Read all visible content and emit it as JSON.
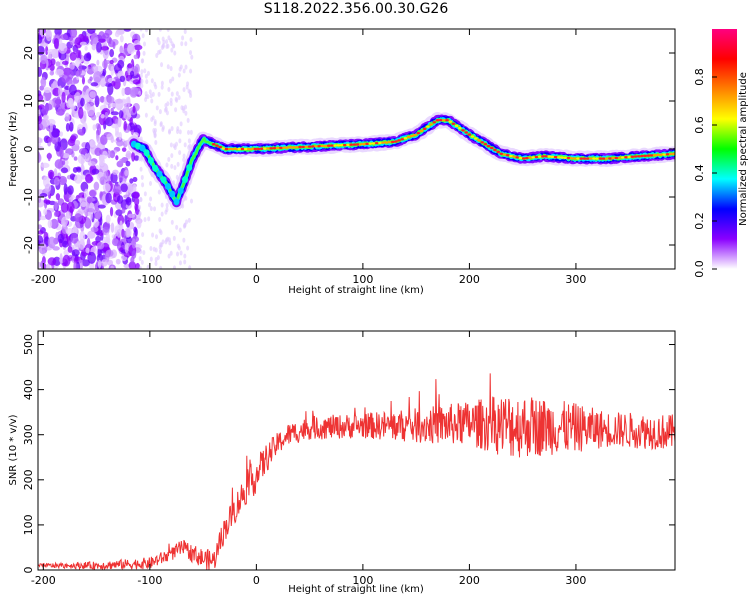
{
  "figure_title": "S118.2022.356.00.30.G26",
  "chart_data": [
    {
      "type": "heatmap",
      "xlabel": "Height of straight line (km)",
      "ylabel": "Frequency (Hz)",
      "xlim": [
        -205,
        393
      ],
      "ylim": [
        -25,
        25
      ],
      "xticks": [
        -200,
        -100,
        0,
        100,
        200,
        300
      ],
      "yticks": [
        -20,
        -10,
        0,
        10,
        20
      ],
      "colorbar": {
        "label": "Normalized spectral amplitude",
        "range": [
          0,
          1
        ],
        "ticks": [
          "0.0",
          "0.2",
          "0.4",
          "0.6",
          "0.8"
        ],
        "colors": [
          "#ffffff",
          "#8a00ff",
          "#0000ff",
          "#00ffff",
          "#00ff00",
          "#ffff00",
          "#ff8000",
          "#ff0000",
          "#ff0080"
        ]
      },
      "ridge": {
        "x": [
          -115,
          -105,
          -95,
          -85,
          -75,
          -68,
          -60,
          -50,
          -40,
          -30,
          0,
          50,
          100,
          130,
          150,
          170,
          180,
          200,
          215,
          230,
          250,
          270,
          300,
          330,
          360,
          393
        ],
        "y": [
          1,
          0,
          -4,
          -7,
          -11,
          -7,
          -2,
          2,
          1,
          0,
          0,
          0.5,
          1,
          1.5,
          3,
          6,
          6,
          3,
          1,
          -1,
          -2,
          -1.5,
          -2,
          -2,
          -1.5,
          -1
        ]
      }
    },
    {
      "type": "line",
      "xlabel": "Height of straight line (km)",
      "ylabel": "SNR (10 * v/v)",
      "xlim": [
        -205,
        393
      ],
      "ylim": [
        0,
        530
      ],
      "xticks": [
        -200,
        -100,
        0,
        100,
        200,
        300
      ],
      "yticks": [
        0,
        100,
        200,
        300,
        400,
        500
      ],
      "color": "#ee3333",
      "envelope": {
        "x": [
          -205,
          -150,
          -100,
          -80,
          -70,
          -50,
          -40,
          -30,
          -10,
          0,
          10,
          20,
          30,
          50,
          100,
          150,
          200,
          250,
          300,
          350,
          393
        ],
        "y": [
          10,
          10,
          15,
          35,
          50,
          25,
          20,
          90,
          180,
          210,
          250,
          280,
          300,
          315,
          320,
          320,
          325,
          320,
          315,
          310,
          305
        ]
      },
      "noise": {
        "x": [
          -205,
          -80,
          -40,
          0,
          20,
          100,
          200,
          240,
          300,
          330,
          393
        ],
        "amplitude": [
          4,
          15,
          25,
          40,
          25,
          28,
          50,
          75,
          55,
          40,
          40
        ]
      },
      "sample_step_km": 0.5
    }
  ]
}
